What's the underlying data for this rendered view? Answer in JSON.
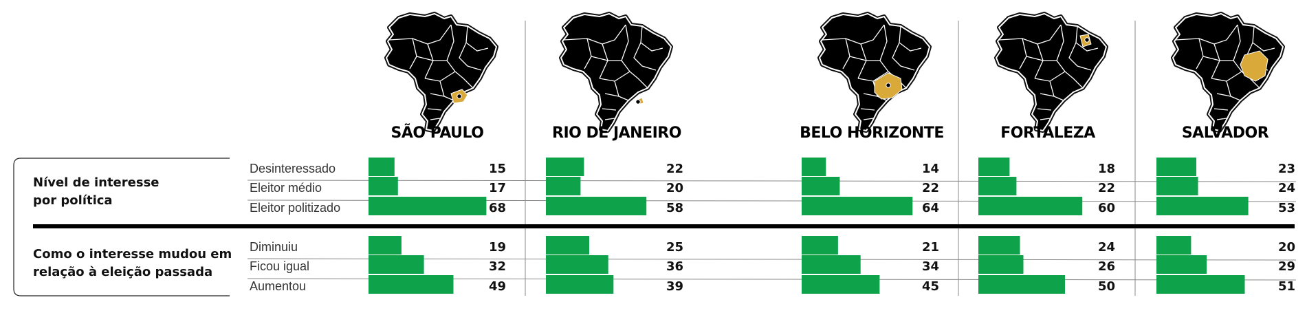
{
  "colors": {
    "bar": "#0ea24a",
    "map_state": "#d9a93a",
    "map_land": "#000000",
    "divider": "#000000"
  },
  "groups": [
    {
      "label_line1": "Nível de interesse",
      "label_line2": "por política"
    },
    {
      "label_line1": "Como o interesse mudou em",
      "label_line2": "relação à eleição passada"
    }
  ],
  "chart_data": {
    "type": "bar",
    "unit": "%",
    "cities": [
      {
        "name": "SÃO PAULO",
        "map_icon": "brazil-map-sp-highlight"
      },
      {
        "name": "RIO DE JANEIRO",
        "map_icon": "brazil-map-rj-highlight"
      },
      {
        "name": "BELO HORIZONTE",
        "map_icon": "brazil-map-mg-highlight"
      },
      {
        "name": "FORTALEZA",
        "map_icon": "brazil-map-ce-highlight"
      },
      {
        "name": "SALVADOR",
        "map_icon": "brazil-map-ba-highlight"
      }
    ],
    "panels": [
      {
        "group": "Nível de interesse por política",
        "categories": [
          "Desinteressado",
          "Eleitor médio",
          "Eleitor politizado"
        ],
        "values": [
          [
            15,
            17,
            68
          ],
          [
            22,
            20,
            58
          ],
          [
            14,
            22,
            64
          ],
          [
            18,
            22,
            60
          ],
          [
            23,
            24,
            53
          ]
        ]
      },
      {
        "group": "Como o interesse mudou em relação à eleição passada",
        "categories": [
          "Diminuiu",
          "Ficou igual",
          "Aumentou"
        ],
        "values": [
          [
            19,
            32,
            49
          ],
          [
            25,
            36,
            39
          ],
          [
            21,
            34,
            45
          ],
          [
            24,
            26,
            50
          ],
          [
            20,
            29,
            51
          ]
        ]
      }
    ]
  }
}
